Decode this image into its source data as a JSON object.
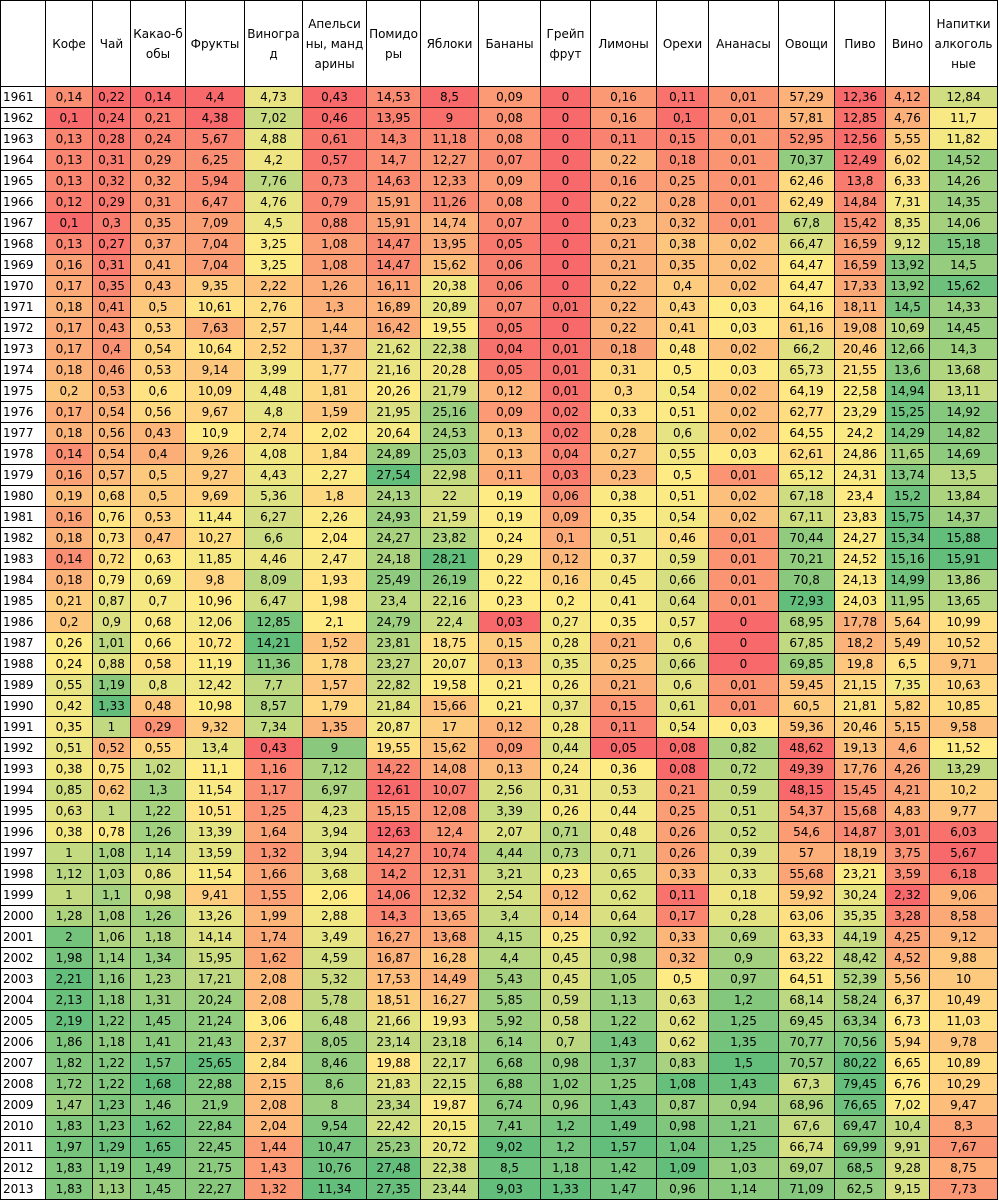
{
  "table": {
    "header": [
      "Кофе",
      "Чай",
      "Какао-бобы",
      "Фрукты",
      "Виноград",
      "Апельсины, мандарины",
      "Помидоры",
      "Яблоки",
      "Бананы",
      "Грейпфрут",
      "Лимоны",
      "Орехи",
      "Ананасы",
      "Овощи",
      "Пиво",
      "Вино",
      "Напитки алкогольные"
    ],
    "rows": [
      [
        "1961",
        "0,14",
        "0,22",
        "0,14",
        "4,4",
        "4,73",
        "0,43",
        "14,53",
        "8,5",
        "0,09",
        "0",
        "0,16",
        "0,11",
        "0,01",
        "57,29",
        "12,36",
        "4,12",
        "12,84"
      ],
      [
        "1962",
        "0,1",
        "0,24",
        "0,21",
        "4,38",
        "7,02",
        "0,46",
        "13,95",
        "9",
        "0,08",
        "0",
        "0,16",
        "0,1",
        "0,01",
        "57,81",
        "12,85",
        "4,76",
        "11,7"
      ],
      [
        "1963",
        "0,13",
        "0,28",
        "0,24",
        "5,67",
        "4,88",
        "0,61",
        "14,3",
        "11,18",
        "0,08",
        "0",
        "0,11",
        "0,15",
        "0,01",
        "52,95",
        "12,56",
        "5,55",
        "11,82"
      ],
      [
        "1964",
        "0,13",
        "0,31",
        "0,29",
        "6,25",
        "4,2",
        "0,57",
        "14,7",
        "12,27",
        "0,07",
        "0",
        "0,22",
        "0,18",
        "0,01",
        "70,37",
        "12,49",
        "6,02",
        "14,52"
      ],
      [
        "1965",
        "0,13",
        "0,32",
        "0,32",
        "5,94",
        "7,76",
        "0,73",
        "14,63",
        "12,33",
        "0,09",
        "0",
        "0,16",
        "0,25",
        "0,01",
        "62,46",
        "13,8",
        "6,33",
        "14,26"
      ],
      [
        "1966",
        "0,12",
        "0,29",
        "0,31",
        "6,47",
        "4,76",
        "0,79",
        "15,91",
        "11,26",
        "0,08",
        "0",
        "0,22",
        "0,28",
        "0,01",
        "62,49",
        "14,84",
        "7,31",
        "14,35"
      ],
      [
        "1967",
        "0,1",
        "0,3",
        "0,35",
        "7,09",
        "4,5",
        "0,88",
        "15,91",
        "14,74",
        "0,07",
        "0",
        "0,23",
        "0,32",
        "0,01",
        "67,8",
        "15,42",
        "8,35",
        "14,06"
      ],
      [
        "1968",
        "0,13",
        "0,27",
        "0,37",
        "7,04",
        "3,25",
        "1,08",
        "14,47",
        "13,95",
        "0,05",
        "0",
        "0,21",
        "0,38",
        "0,02",
        "66,47",
        "16,59",
        "9,12",
        "15,18"
      ],
      [
        "1969",
        "0,16",
        "0,31",
        "0,41",
        "7,04",
        "3,25",
        "1,08",
        "14,47",
        "15,62",
        "0,06",
        "0",
        "0,21",
        "0,35",
        "0,02",
        "64,47",
        "16,59",
        "13,92",
        "14,5"
      ],
      [
        "1970",
        "0,17",
        "0,35",
        "0,43",
        "9,35",
        "2,22",
        "1,26",
        "16,11",
        "20,38",
        "0,06",
        "0",
        "0,22",
        "0,4",
        "0,02",
        "64,47",
        "17,33",
        "13,92",
        "15,62"
      ],
      [
        "1971",
        "0,18",
        "0,41",
        "0,5",
        "10,61",
        "2,76",
        "1,3",
        "16,89",
        "20,89",
        "0,07",
        "0,01",
        "0,22",
        "0,43",
        "0,03",
        "64,16",
        "18,11",
        "14,5",
        "14,33"
      ],
      [
        "1972",
        "0,17",
        "0,43",
        "0,53",
        "7,63",
        "2,57",
        "1,44",
        "16,42",
        "19,55",
        "0,05",
        "0",
        "0,22",
        "0,41",
        "0,03",
        "61,16",
        "19,08",
        "10,69",
        "14,45"
      ],
      [
        "1973",
        "0,17",
        "0,4",
        "0,54",
        "10,64",
        "2,52",
        "1,37",
        "21,62",
        "22,38",
        "0,04",
        "0,01",
        "0,18",
        "0,48",
        "0,02",
        "66,2",
        "20,46",
        "12,66",
        "14,3"
      ],
      [
        "1974",
        "0,18",
        "0,46",
        "0,53",
        "9,14",
        "3,99",
        "1,77",
        "21,16",
        "20,28",
        "0,05",
        "0,01",
        "0,31",
        "0,5",
        "0,03",
        "65,73",
        "21,55",
        "13,6",
        "13,68"
      ],
      [
        "1975",
        "0,2",
        "0,53",
        "0,6",
        "10,09",
        "4,48",
        "1,81",
        "20,26",
        "21,79",
        "0,12",
        "0,01",
        "0,3",
        "0,54",
        "0,02",
        "64,19",
        "22,58",
        "14,94",
        "13,11"
      ],
      [
        "1976",
        "0,17",
        "0,54",
        "0,56",
        "9,67",
        "4,8",
        "1,59",
        "21,95",
        "25,16",
        "0,09",
        "0,02",
        "0,33",
        "0,51",
        "0,02",
        "62,77",
        "23,29",
        "15,25",
        "14,92"
      ],
      [
        "1977",
        "0,18",
        "0,56",
        "0,43",
        "10,9",
        "2,74",
        "2,02",
        "20,64",
        "24,53",
        "0,13",
        "0,02",
        "0,28",
        "0,6",
        "0,02",
        "64,55",
        "24,2",
        "14,29",
        "14,82"
      ],
      [
        "1978",
        "0,14",
        "0,54",
        "0,4",
        "9,26",
        "4,08",
        "1,84",
        "24,89",
        "25,03",
        "0,13",
        "0,04",
        "0,27",
        "0,55",
        "0,03",
        "62,61",
        "24,86",
        "11,65",
        "14,69"
      ],
      [
        "1979",
        "0,16",
        "0,57",
        "0,5",
        "9,27",
        "4,43",
        "2,27",
        "27,54",
        "22,98",
        "0,11",
        "0,03",
        "0,23",
        "0,5",
        "0,01",
        "65,12",
        "24,31",
        "13,74",
        "13,5"
      ],
      [
        "1980",
        "0,19",
        "0,68",
        "0,5",
        "9,69",
        "5,36",
        "1,8",
        "24,13",
        "22",
        "0,19",
        "0,06",
        "0,38",
        "0,51",
        "0,02",
        "67,18",
        "23,4",
        "15,2",
        "13,84"
      ],
      [
        "1981",
        "0,16",
        "0,76",
        "0,53",
        "11,44",
        "6,27",
        "2,26",
        "24,93",
        "21,59",
        "0,19",
        "0,09",
        "0,35",
        "0,54",
        "0,02",
        "67,11",
        "23,83",
        "15,75",
        "14,37"
      ],
      [
        "1982",
        "0,18",
        "0,73",
        "0,47",
        "10,27",
        "6,6",
        "2,04",
        "24,27",
        "23,82",
        "0,24",
        "0,1",
        "0,51",
        "0,46",
        "0,01",
        "70,44",
        "24,27",
        "15,34",
        "15,88"
      ],
      [
        "1983",
        "0,14",
        "0,72",
        "0,63",
        "11,85",
        "4,46",
        "2,47",
        "24,18",
        "28,21",
        "0,29",
        "0,12",
        "0,37",
        "0,59",
        "0,01",
        "70,21",
        "24,52",
        "15,16",
        "15,91"
      ],
      [
        "1984",
        "0,18",
        "0,79",
        "0,69",
        "9,8",
        "8,09",
        "1,93",
        "25,49",
        "26,19",
        "0,22",
        "0,16",
        "0,45",
        "0,66",
        "0,01",
        "70,8",
        "24,13",
        "14,99",
        "13,86"
      ],
      [
        "1985",
        "0,21",
        "0,87",
        "0,7",
        "10,96",
        "6,47",
        "1,98",
        "23,4",
        "22,16",
        "0,23",
        "0,2",
        "0,41",
        "0,64",
        "0,01",
        "72,93",
        "24,03",
        "11,95",
        "13,65"
      ],
      [
        "1986",
        "0,2",
        "0,9",
        "0,68",
        "12,06",
        "12,85",
        "2,1",
        "24,79",
        "22,4",
        "0,03",
        "0,27",
        "0,35",
        "0,57",
        "0",
        "68,95",
        "17,78",
        "5,64",
        "10,99"
      ],
      [
        "1987",
        "0,26",
        "1,01",
        "0,66",
        "10,72",
        "14,21",
        "1,52",
        "23,81",
        "18,75",
        "0,15",
        "0,28",
        "0,21",
        "0,6",
        "0",
        "67,85",
        "18,2",
        "5,49",
        "10,52"
      ],
      [
        "1988",
        "0,24",
        "0,88",
        "0,58",
        "11,19",
        "11,36",
        "1,78",
        "23,27",
        "20,07",
        "0,13",
        "0,35",
        "0,25",
        "0,66",
        "0",
        "69,85",
        "19,8",
        "6,5",
        "9,71"
      ],
      [
        "1989",
        "0,55",
        "1,19",
        "0,8",
        "12,42",
        "7,7",
        "1,57",
        "22,82",
        "19,58",
        "0,21",
        "0,26",
        "0,21",
        "0,6",
        "0,01",
        "59,45",
        "21,15",
        "7,35",
        "10,63"
      ],
      [
        "1990",
        "0,42",
        "1,33",
        "0,48",
        "10,98",
        "8,57",
        "1,79",
        "21,84",
        "15,66",
        "0,21",
        "0,37",
        "0,15",
        "0,61",
        "0,01",
        "60,5",
        "21,81",
        "5,82",
        "10,85"
      ],
      [
        "1991",
        "0,35",
        "1",
        "0,29",
        "9,32",
        "7,34",
        "1,35",
        "20,87",
        "17",
        "0,12",
        "0,28",
        "0,11",
        "0,54",
        "0,03",
        "59,36",
        "20,46",
        "5,15",
        "9,58"
      ],
      [
        "1992",
        "0,51",
        "0,52",
        "0,55",
        "13,4",
        "0,43",
        "9",
        "19,55",
        "15,62",
        "0,09",
        "0,44",
        "0,05",
        "0,08",
        "0,82",
        "48,62",
        "19,13",
        "4,6",
        "11,52"
      ],
      [
        "1993",
        "0,38",
        "0,75",
        "1,02",
        "11,1",
        "1,16",
        "7,12",
        "14,22",
        "14,08",
        "0,13",
        "0,24",
        "0,36",
        "0,08",
        "0,72",
        "49,39",
        "17,76",
        "4,26",
        "13,29"
      ],
      [
        "1994",
        "0,85",
        "0,62",
        "1,3",
        "11,54",
        "1,17",
        "6,97",
        "12,61",
        "10,07",
        "2,56",
        "0,31",
        "0,53",
        "0,21",
        "0,59",
        "48,15",
        "15,45",
        "4,21",
        "10,2"
      ],
      [
        "1995",
        "0,63",
        "1",
        "1,22",
        "10,51",
        "1,25",
        "4,23",
        "15,15",
        "12,08",
        "3,39",
        "0,26",
        "0,44",
        "0,25",
        "0,51",
        "54,37",
        "15,68",
        "4,83",
        "9,77"
      ],
      [
        "1996",
        "0,38",
        "0,78",
        "1,26",
        "13,39",
        "1,64",
        "3,94",
        "12,63",
        "12,4",
        "2,07",
        "0,71",
        "0,48",
        "0,26",
        "0,52",
        "54,6",
        "14,87",
        "3,01",
        "6,03"
      ],
      [
        "1997",
        "1",
        "1,08",
        "1,14",
        "13,59",
        "1,32",
        "3,94",
        "14,27",
        "10,74",
        "4,44",
        "0,73",
        "0,71",
        "0,26",
        "0,39",
        "57",
        "18,19",
        "3,75",
        "5,67"
      ],
      [
        "1998",
        "1,12",
        "1,03",
        "0,86",
        "11,54",
        "1,66",
        "3,68",
        "14,2",
        "12,31",
        "3,21",
        "0,23",
        "0,65",
        "0,33",
        "0,33",
        "55,68",
        "23,21",
        "3,59",
        "6,18"
      ],
      [
        "1999",
        "1",
        "1,1",
        "0,98",
        "9,41",
        "1,55",
        "2,06",
        "14,06",
        "12,32",
        "2,54",
        "0,12",
        "0,62",
        "0,11",
        "0,18",
        "59,92",
        "30,24",
        "2,32",
        "9,06"
      ],
      [
        "2000",
        "1,28",
        "1,08",
        "1,26",
        "13,26",
        "1,99",
        "2,88",
        "14,3",
        "13,65",
        "3,4",
        "0,14",
        "0,64",
        "0,17",
        "0,28",
        "63,06",
        "35,35",
        "3,28",
        "8,58"
      ],
      [
        "2001",
        "2",
        "1,06",
        "1,18",
        "14,14",
        "1,74",
        "3,49",
        "16,27",
        "13,68",
        "4,15",
        "0,25",
        "0,92",
        "0,33",
        "0,69",
        "63,33",
        "44,19",
        "4,25",
        "9,12"
      ],
      [
        "2002",
        "1,98",
        "1,14",
        "1,34",
        "15,95",
        "1,62",
        "4,59",
        "16,87",
        "16,28",
        "4,4",
        "0,45",
        "0,98",
        "0,32",
        "0,9",
        "63,22",
        "48,42",
        "4,52",
        "9,88"
      ],
      [
        "2003",
        "2,21",
        "1,16",
        "1,23",
        "17,21",
        "2,08",
        "5,32",
        "17,53",
        "14,49",
        "5,43",
        "0,45",
        "1,05",
        "0,5",
        "0,97",
        "64,51",
        "52,39",
        "5,56",
        "10"
      ],
      [
        "2004",
        "2,13",
        "1,18",
        "1,31",
        "20,24",
        "2,08",
        "5,78",
        "18,51",
        "16,27",
        "5,85",
        "0,59",
        "1,13",
        "0,63",
        "1,2",
        "68,14",
        "58,24",
        "6,37",
        "10,49"
      ],
      [
        "2005",
        "2,19",
        "1,22",
        "1,45",
        "21,24",
        "3,06",
        "6,48",
        "21,66",
        "19,93",
        "5,92",
        "0,58",
        "1,22",
        "0,62",
        "1,25",
        "69,45",
        "63,34",
        "6,73",
        "11,03"
      ],
      [
        "2006",
        "1,86",
        "1,18",
        "1,41",
        "21,43",
        "2,37",
        "8,05",
        "23,14",
        "23,18",
        "6,14",
        "0,7",
        "1,43",
        "0,62",
        "1,35",
        "70,77",
        "70,56",
        "5,94",
        "9,78"
      ],
      [
        "2007",
        "1,82",
        "1,22",
        "1,57",
        "25,65",
        "2,84",
        "8,46",
        "19,88",
        "22,17",
        "6,68",
        "0,98",
        "1,37",
        "0,83",
        "1,5",
        "70,57",
        "80,22",
        "6,65",
        "10,89"
      ],
      [
        "2008",
        "1,72",
        "1,22",
        "1,68",
        "22,88",
        "2,15",
        "8,6",
        "21,83",
        "22,15",
        "6,88",
        "1,02",
        "1,25",
        "1,08",
        "1,43",
        "67,3",
        "79,45",
        "6,76",
        "10,29"
      ],
      [
        "2009",
        "1,47",
        "1,23",
        "1,46",
        "21,9",
        "2,08",
        "8",
        "23,34",
        "19,87",
        "6,74",
        "0,96",
        "1,43",
        "0,87",
        "0,94",
        "68,96",
        "76,65",
        "7,02",
        "9,47"
      ],
      [
        "2010",
        "1,83",
        "1,23",
        "1,62",
        "22,84",
        "2,04",
        "9,54",
        "22,42",
        "20,15",
        "7,41",
        "1,2",
        "1,49",
        "0,98",
        "1,21",
        "67,6",
        "69,47",
        "10,4",
        "8,3"
      ],
      [
        "2011",
        "1,97",
        "1,29",
        "1,65",
        "22,45",
        "1,44",
        "10,47",
        "25,23",
        "20,72",
        "9,02",
        "1,2",
        "1,57",
        "1,04",
        "1,25",
        "66,74",
        "69,99",
        "9,91",
        "7,67"
      ],
      [
        "2012",
        "1,83",
        "1,19",
        "1,49",
        "21,75",
        "1,43",
        "10,76",
        "27,48",
        "22,38",
        "8,5",
        "1,18",
        "1,42",
        "1,09",
        "1,03",
        "69,07",
        "68,5",
        "9,28",
        "8,75"
      ],
      [
        "2013",
        "1,83",
        "1,13",
        "1,45",
        "22,27",
        "1,32",
        "11,34",
        "27,35",
        "23,44",
        "9,03",
        "1,33",
        "1,47",
        "0,96",
        "1,14",
        "71,09",
        "62,5",
        "9,15",
        "7,73"
      ]
    ]
  }
}
